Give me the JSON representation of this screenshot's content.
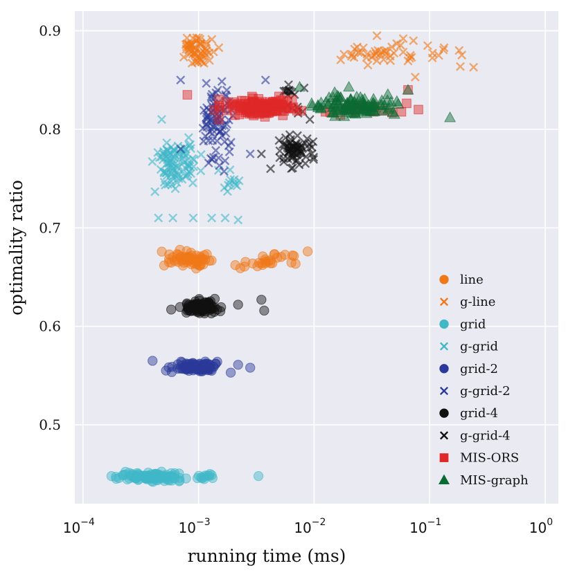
{
  "chart_data": {
    "type": "scatter",
    "xscale": "log",
    "xlabel": "running time (ms)",
    "ylabel": "optimality ratio",
    "xlim": [
      8.5e-05,
      1.3
    ],
    "ylim": [
      0.42,
      0.92
    ],
    "grid": true,
    "legend_position": "right",
    "x_ticks": [
      {
        "value": 0.0001,
        "base": "10",
        "exp": "−4"
      },
      {
        "value": 0.001,
        "base": "10",
        "exp": "−3"
      },
      {
        "value": 0.01,
        "base": "10",
        "exp": "−2"
      },
      {
        "value": 0.1,
        "base": "10",
        "exp": "−1"
      },
      {
        "value": 1,
        "base": "10",
        "exp": "0"
      }
    ],
    "y_ticks": [
      {
        "value": 0.5,
        "label": "0.5"
      },
      {
        "value": 0.6,
        "label": "0.6"
      },
      {
        "value": 0.7,
        "label": "0.7"
      },
      {
        "value": 0.8,
        "label": "0.8"
      },
      {
        "value": 0.9,
        "label": "0.9"
      }
    ],
    "series": [
      {
        "name": "line",
        "marker": "circle",
        "color": "#f07818",
        "clusters": [
          {
            "x": [
              0.0004,
              0.0016
            ],
            "y": [
              0.658,
              0.68
            ],
            "n": 60
          },
          {
            "x": [
              0.0016,
              0.0095
            ],
            "y": [
              0.655,
              0.68
            ],
            "n": 22
          }
        ],
        "points": [
          [
            0.0088,
            0.676
          ],
          [
            0.0065,
            0.672
          ],
          [
            0.0042,
            0.664
          ],
          [
            0.0023,
            0.659
          ],
          [
            0.0036,
            0.671
          ]
        ]
      },
      {
        "name": "g-line",
        "marker": "x",
        "color": "#f07818",
        "clusters": [
          {
            "x": [
              0.0006,
              0.0016
            ],
            "y": [
              0.86,
              0.9
            ],
            "n": 60
          },
          {
            "x": [
              0.01,
              0.25
            ],
            "y": [
              0.855,
              0.895
            ],
            "n": 45
          }
        ],
        "points": [
          [
            0.24,
            0.863
          ],
          [
            0.18,
            0.88
          ],
          [
            0.12,
            0.875
          ],
          [
            0.075,
            0.853
          ],
          [
            0.035,
            0.895
          ]
        ]
      },
      {
        "name": "grid",
        "marker": "circle",
        "color": "#40b8c8",
        "clusters": [
          {
            "x": [
              0.00015,
              0.0009
            ],
            "y": [
              0.44,
              0.455
            ],
            "n": 110
          },
          {
            "x": [
              0.0009,
              0.0015
            ],
            "y": [
              0.441,
              0.451
            ],
            "n": 10
          }
        ],
        "points": [
          [
            0.0033,
            0.448
          ],
          [
            0.0013,
            0.449
          ],
          [
            0.00112,
            0.445
          ]
        ]
      },
      {
        "name": "g-grid",
        "marker": "x",
        "color": "#40b8c8",
        "clusters": [
          {
            "x": [
              0.00035,
              0.0012
            ],
            "y": [
              0.73,
              0.8
            ],
            "n": 95
          },
          {
            "x": [
              0.0012,
              0.0026
            ],
            "y": [
              0.73,
              0.77
            ],
            "n": 12
          }
        ],
        "points": [
          [
            0.00045,
            0.71
          ],
          [
            0.0006,
            0.71
          ],
          [
            0.0009,
            0.71
          ],
          [
            0.0013,
            0.71
          ],
          [
            0.0017,
            0.71
          ],
          [
            0.0022,
            0.708
          ],
          [
            0.00048,
            0.81
          ]
        ]
      },
      {
        "name": "grid-2",
        "marker": "circle",
        "color": "#2b3a9a",
        "clusters": [
          {
            "x": [
              0.00045,
              0.0018
            ],
            "y": [
              0.551,
              0.567
            ],
            "n": 95
          }
        ],
        "points": [
          [
            0.0028,
            0.558
          ],
          [
            0.0022,
            0.561
          ],
          [
            0.0019,
            0.553
          ],
          [
            0.0004,
            0.565
          ]
        ]
      },
      {
        "name": "g-grid-2",
        "marker": "x",
        "color": "#2b3a9a",
        "clusters": [
          {
            "x": [
              0.0009,
              0.0022
            ],
            "y": [
              0.75,
              0.86
            ],
            "n": 85
          }
        ],
        "points": [
          [
            0.0038,
            0.85
          ],
          [
            0.0028,
            0.775
          ],
          [
            0.0007,
            0.78
          ],
          [
            0.0007,
            0.85
          ]
        ]
      },
      {
        "name": "grid-4",
        "marker": "circle",
        "color": "#111111",
        "clusters": [
          {
            "x": [
              0.0006,
              0.0018
            ],
            "y": [
              0.61,
              0.63
            ],
            "n": 90
          }
        ],
        "points": [
          [
            0.0035,
            0.627
          ],
          [
            0.0037,
            0.616
          ],
          [
            0.0022,
            0.622
          ],
          [
            0.00058,
            0.617
          ]
        ]
      },
      {
        "name": "g-grid-4",
        "marker": "x",
        "color": "#111111",
        "clusters": [
          {
            "x": [
              0.0045,
              0.011
            ],
            "y": [
              0.755,
              0.8
            ],
            "n": 70
          },
          {
            "x": [
              0.004,
              0.01
            ],
            "y": [
              0.81,
              0.85
            ],
            "n": 18
          }
        ],
        "points": [
          [
            0.0035,
            0.775
          ],
          [
            0.0042,
            0.76
          ],
          [
            0.0092,
            0.81
          ],
          [
            0.0082,
            0.842
          ]
        ]
      },
      {
        "name": "MIS-ORS",
        "marker": "square",
        "color": "#e02828",
        "clusters": [
          {
            "x": [
              0.0013,
              0.009
            ],
            "y": [
              0.81,
              0.835
            ],
            "n": 140
          },
          {
            "x": [
              0.009,
              0.07
            ],
            "y": [
              0.81,
              0.83
            ],
            "n": 18
          }
        ],
        "points": [
          [
            0.0008,
            0.835
          ],
          [
            0.08,
            0.82
          ],
          [
            0.065,
            0.84
          ],
          [
            0.0015,
            0.81
          ]
        ]
      },
      {
        "name": "MIS-graph",
        "marker": "triangle",
        "color": "#0a6a32",
        "clusters": [
          {
            "x": [
              0.0065,
              0.075
            ],
            "y": [
              0.81,
              0.84
            ],
            "n": 110
          }
        ],
        "points": [
          [
            0.15,
            0.812
          ],
          [
            0.065,
            0.84
          ],
          [
            0.0075,
            0.843
          ],
          [
            0.02,
            0.843
          ]
        ]
      }
    ]
  }
}
